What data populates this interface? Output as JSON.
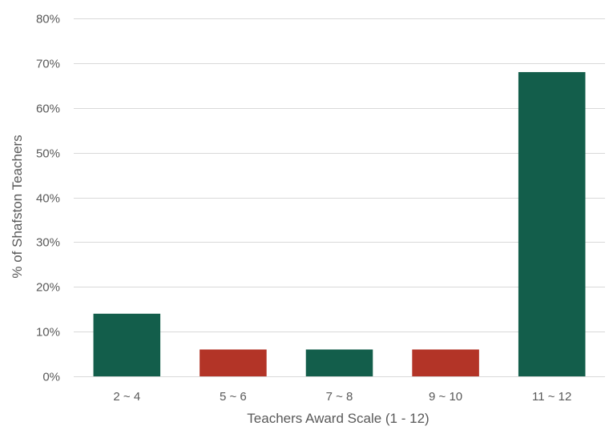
{
  "chart_data": {
    "type": "bar",
    "title": "",
    "xlabel": "Teachers Award Scale (1 - 12)",
    "ylabel": "% of Shafston Teachers",
    "categories": [
      "2 ~ 4",
      "5 ~ 6",
      "7 ~ 8",
      "9 ~ 10",
      "11 ~ 12"
    ],
    "values": [
      14,
      6,
      6,
      6,
      68
    ],
    "bar_colors": [
      "#135e4b",
      "#b33427",
      "#135e4b",
      "#b33427",
      "#135e4b"
    ],
    "ylim": [
      0,
      80
    ],
    "y_ticks": [
      0,
      10,
      20,
      30,
      40,
      50,
      60,
      70,
      80
    ],
    "y_tick_format": "percent",
    "grid": true,
    "legend": "none"
  }
}
